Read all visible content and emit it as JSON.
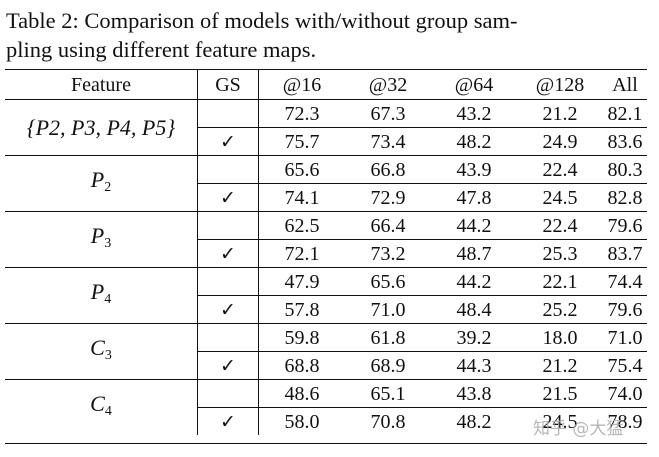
{
  "caption": {
    "line1": "Table 2: Comparison of models with/without group sam-",
    "line2": "pling using different feature maps."
  },
  "headers": [
    "Feature",
    "GS",
    "@16",
    "@32",
    "@64",
    "@128",
    "All"
  ],
  "groups": [
    {
      "feature_base": "{P2, P3, P4, P5}",
      "rows": [
        {
          "gs": "",
          "v16": "72.3",
          "v32": "67.3",
          "v64": "43.2",
          "v128": "21.2",
          "all": "82.1"
        },
        {
          "gs": "✓",
          "v16": "75.7",
          "v32": "73.4",
          "v64": "48.2",
          "v128": "24.9",
          "all": "83.6"
        }
      ]
    },
    {
      "feature_base": "P",
      "feature_sub": "2",
      "rows": [
        {
          "gs": "",
          "v16": "65.6",
          "v32": "66.8",
          "v64": "43.9",
          "v128": "22.4",
          "all": "80.3"
        },
        {
          "gs": "✓",
          "v16": "74.1",
          "v32": "72.9",
          "v64": "47.8",
          "v128": "24.5",
          "all": "82.8"
        }
      ]
    },
    {
      "feature_base": "P",
      "feature_sub": "3",
      "rows": [
        {
          "gs": "",
          "v16": "62.5",
          "v32": "66.4",
          "v64": "44.2",
          "v128": "22.4",
          "all": "79.6"
        },
        {
          "gs": "✓",
          "v16": "72.1",
          "v32": "73.2",
          "v64": "48.7",
          "v128": "25.3",
          "all": "83.7"
        }
      ]
    },
    {
      "feature_base": "P",
      "feature_sub": "4",
      "rows": [
        {
          "gs": "",
          "v16": "47.9",
          "v32": "65.6",
          "v64": "44.2",
          "v128": "22.1",
          "all": "74.4"
        },
        {
          "gs": "✓",
          "v16": "57.8",
          "v32": "71.0",
          "v64": "48.4",
          "v128": "25.2",
          "all": "79.6"
        }
      ]
    },
    {
      "feature_base": "C",
      "feature_sub": "3",
      "rows": [
        {
          "gs": "",
          "v16": "59.8",
          "v32": "61.8",
          "v64": "39.2",
          "v128": "18.0",
          "all": "71.0"
        },
        {
          "gs": "✓",
          "v16": "68.8",
          "v32": "68.9",
          "v64": "44.3",
          "v128": "21.2",
          "all": "75.4"
        }
      ]
    },
    {
      "feature_base": "C",
      "feature_sub": "4",
      "rows": [
        {
          "gs": "",
          "v16": "48.6",
          "v32": "65.1",
          "v64": "43.8",
          "v128": "21.5",
          "all": "74.0"
        },
        {
          "gs": "✓",
          "v16": "58.0",
          "v32": "70.8",
          "v64": "48.2",
          "v128": "24.5",
          "all": "78.9"
        }
      ]
    }
  ],
  "watermark": "知乎 @大猛"
}
